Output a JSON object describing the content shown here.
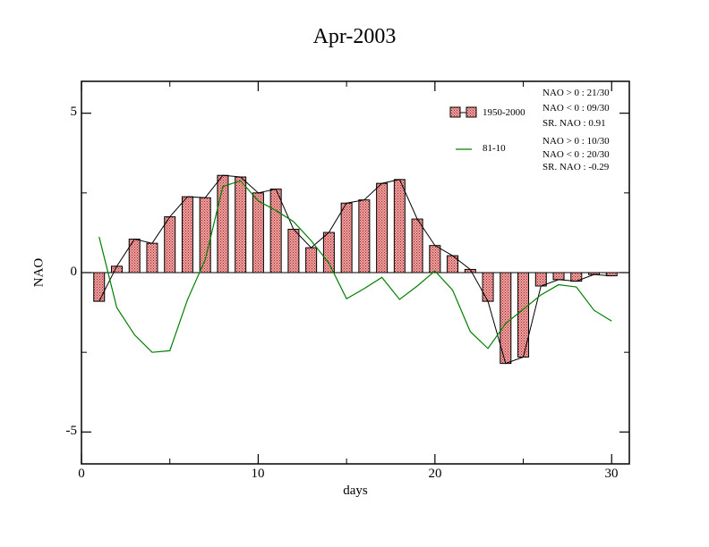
{
  "chart_data": {
    "type": "bar",
    "title": "Apr-2003",
    "xlabel": "days",
    "ylabel": "NAO",
    "xlim": [
      0,
      31
    ],
    "ylim": [
      -6,
      6
    ],
    "x_ticks": [
      0,
      10,
      20,
      30
    ],
    "y_ticks": [
      -5,
      0,
      5
    ],
    "x_tick_labels": [
      "0",
      "10",
      "20",
      "30"
    ],
    "y_tick_labels": [
      "-5",
      "0",
      "5"
    ],
    "legend_position": "top-right",
    "series": [
      {
        "name": "1950-2000",
        "kind": "bar",
        "color": "#f4a0a0",
        "x": [
          1,
          2,
          3,
          4,
          5,
          6,
          7,
          8,
          9,
          10,
          11,
          12,
          13,
          14,
          15,
          16,
          17,
          18,
          19,
          20,
          21,
          22,
          23,
          24,
          25,
          26,
          27,
          28,
          29,
          30
        ],
        "values": [
          -0.9,
          0.2,
          1.05,
          0.92,
          1.75,
          2.38,
          2.35,
          3.05,
          3.0,
          2.5,
          2.62,
          1.36,
          0.78,
          1.26,
          2.18,
          2.28,
          2.8,
          2.92,
          1.68,
          0.85,
          0.53,
          0.1,
          -0.9,
          -2.85,
          -2.65,
          -0.42,
          -0.22,
          -0.27,
          -0.06,
          -0.1
        ]
      },
      {
        "name": "81-10",
        "kind": "line",
        "color": "#008000",
        "x": [
          1,
          2,
          3,
          4,
          5,
          6,
          7,
          8,
          9,
          10,
          11,
          12,
          13,
          14,
          15,
          16,
          17,
          18,
          19,
          20,
          21,
          22,
          23,
          24,
          25,
          26,
          27,
          28,
          29,
          30
        ],
        "values": [
          1.12,
          -1.1,
          -1.95,
          -2.5,
          -2.45,
          -0.85,
          0.4,
          2.7,
          2.88,
          2.25,
          1.95,
          1.6,
          1.0,
          0.3,
          -0.82,
          -0.5,
          -0.15,
          -0.84,
          -0.42,
          0.05,
          -0.55,
          -1.85,
          -2.38,
          -1.6,
          -1.15,
          -0.7,
          -0.38,
          -0.45,
          -1.18,
          -1.52
        ]
      }
    ],
    "annotations": [
      {
        "group": "1950-2000",
        "lines": [
          "NAO > 0 : 21/30",
          "NAO < 0 : 09/30",
          "SR. NAO :  0.91"
        ]
      },
      {
        "group": "81-10",
        "lines": [
          "NAO > 0 : 10/30",
          "NAO < 0 : 20/30",
          "SR. NAO : -0.29"
        ]
      }
    ]
  }
}
